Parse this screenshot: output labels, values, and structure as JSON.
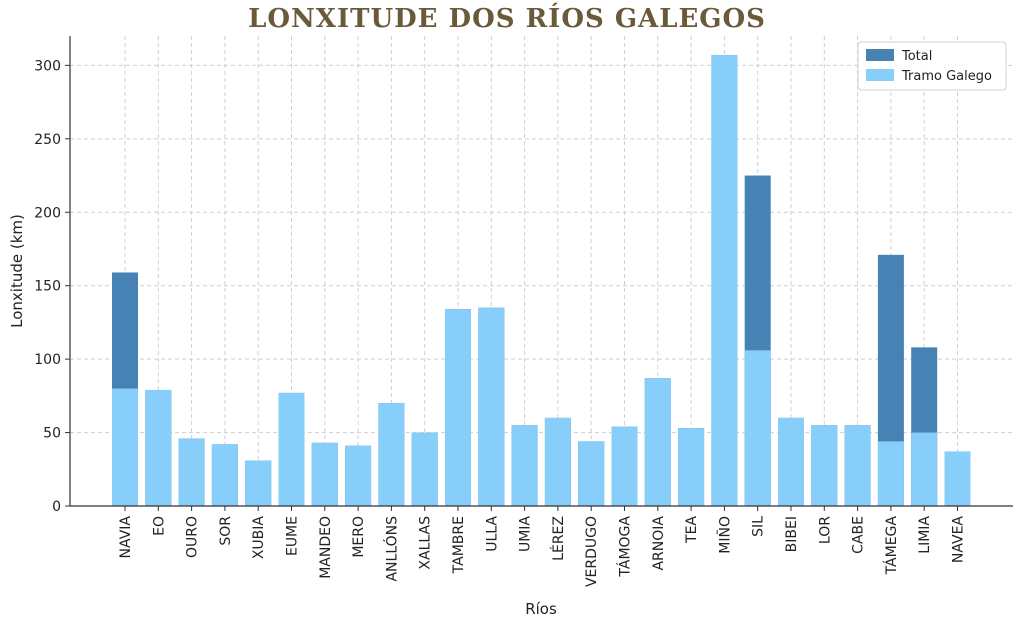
{
  "chart_data": {
    "type": "bar",
    "title": "LONXITUDE DOS RÍOS GALEGOS",
    "xlabel": "Ríos",
    "ylabel": "Lonxitude (km)",
    "ylim": [
      0,
      320
    ],
    "yticks": [
      0,
      50,
      100,
      150,
      200,
      250,
      300
    ],
    "grid": true,
    "legend_position": "top-right",
    "categories": [
      "NAVIA",
      "EO",
      "OURO",
      "SOR",
      "XUBIA",
      "EUME",
      "MANDEO",
      "MERO",
      "ANLLÓNS",
      "XALLAS",
      "TAMBRE",
      "ULLA",
      "UMIA",
      "LÉREZ",
      "VERDUGO",
      "TÁMOGA",
      "ARNOIA",
      "TEA",
      "MIÑO",
      "SIL",
      "BIBEI",
      "LOR",
      "CABE",
      "TÁMEGA",
      "LIMIA",
      "NAVEA"
    ],
    "series": [
      {
        "name": "Total",
        "color": "#4682b4",
        "values": [
          159,
          79,
          46,
          42,
          31,
          77,
          43,
          41,
          70,
          50,
          134,
          135,
          55,
          60,
          44,
          54,
          87,
          53,
          307,
          225,
          60,
          55,
          55,
          171,
          108,
          37
        ]
      },
      {
        "name": "Tramo Galego",
        "color": "#87cefa",
        "values": [
          80,
          79,
          46,
          42,
          31,
          77,
          43,
          41,
          70,
          50,
          134,
          135,
          55,
          60,
          44,
          54,
          87,
          53,
          307,
          106,
          60,
          55,
          55,
          44,
          50,
          37
        ]
      }
    ]
  }
}
